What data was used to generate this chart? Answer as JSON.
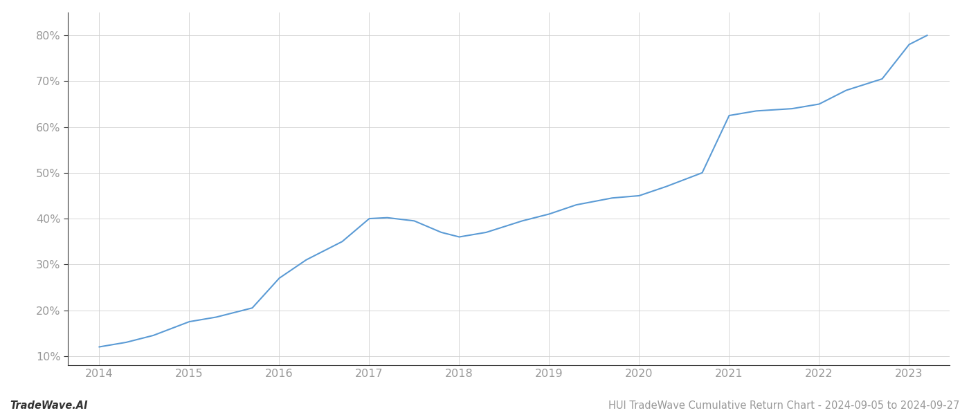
{
  "x_years": [
    2014.0,
    2014.3,
    2014.6,
    2015.0,
    2015.3,
    2015.7,
    2016.0,
    2016.3,
    2016.7,
    2017.0,
    2017.2,
    2017.5,
    2017.8,
    2018.0,
    2018.3,
    2018.7,
    2019.0,
    2019.3,
    2019.7,
    2020.0,
    2020.3,
    2020.7,
    2021.0,
    2021.3,
    2021.7,
    2022.0,
    2022.3,
    2022.7,
    2023.0,
    2023.2
  ],
  "y_values": [
    12.0,
    13.0,
    14.5,
    17.5,
    18.5,
    20.5,
    27.0,
    31.0,
    35.0,
    40.0,
    40.2,
    39.5,
    37.0,
    36.0,
    37.0,
    39.5,
    41.0,
    43.0,
    44.5,
    45.0,
    47.0,
    50.0,
    62.5,
    63.5,
    64.0,
    65.0,
    68.0,
    70.5,
    78.0,
    80.0
  ],
  "line_color": "#5b9bd5",
  "line_width": 1.5,
  "background_color": "#ffffff",
  "grid_color": "#d0d0d0",
  "ylim": [
    8,
    85
  ],
  "xlim": [
    2013.65,
    2023.45
  ],
  "yticks": [
    10,
    20,
    30,
    40,
    50,
    60,
    70,
    80
  ],
  "xticks": [
    2014,
    2015,
    2016,
    2017,
    2018,
    2019,
    2020,
    2021,
    2022,
    2023
  ],
  "tick_label_color": "#999999",
  "footer_left": "TradeWave.AI",
  "footer_right": "HUI TradeWave Cumulative Return Chart - 2024-09-05 to 2024-09-27",
  "footer_fontsize": 10.5,
  "footer_color": "#999999",
  "left_spine_color": "#333333",
  "bottom_spine_color": "#333333"
}
